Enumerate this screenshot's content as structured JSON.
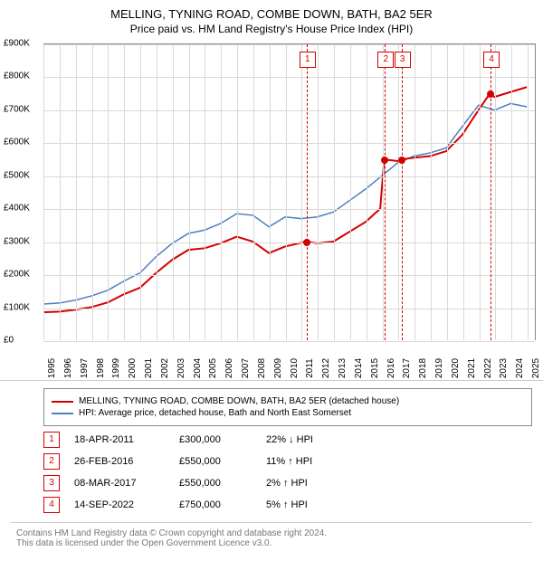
{
  "chart": {
    "title_line1": "MELLING, TYNING ROAD, COMBE DOWN, BATH, BA2 5ER",
    "title_line2": "Price paid vs. HM Land Registry's House Price Index (HPI)",
    "background_color": "#ffffff",
    "grid_color": "#d9d9d9",
    "axis_color": "#888888",
    "font_size_title": 13,
    "font_size_axis": 10,
    "y": {
      "min": 0,
      "max": 900000,
      "step": 100000,
      "ticks": [
        "£0",
        "£100K",
        "£200K",
        "£300K",
        "£400K",
        "£500K",
        "£600K",
        "£700K",
        "£800K",
        "£900K"
      ]
    },
    "x": {
      "min": 1995,
      "max": 2025.5,
      "ticks": [
        "1995",
        "1996",
        "1997",
        "1998",
        "1999",
        "2000",
        "2001",
        "2002",
        "2003",
        "2004",
        "2005",
        "2006",
        "2007",
        "2008",
        "2009",
        "2010",
        "2011",
        "2012",
        "2013",
        "2014",
        "2015",
        "2016",
        "2017",
        "2018",
        "2019",
        "2020",
        "2021",
        "2022",
        "2023",
        "2024",
        "2025"
      ]
    },
    "series": {
      "red": {
        "color": "#d40000",
        "width": 2,
        "label": "MELLING, TYNING ROAD, COMBE DOWN, BATH, BA2 5ER (detached house)",
        "points": [
          [
            1995,
            85000
          ],
          [
            1996,
            87000
          ],
          [
            1997,
            93000
          ],
          [
            1998,
            101000
          ],
          [
            1999,
            115000
          ],
          [
            2000,
            140000
          ],
          [
            2001,
            160000
          ],
          [
            2002,
            205000
          ],
          [
            2003,
            245000
          ],
          [
            2004,
            275000
          ],
          [
            2005,
            280000
          ],
          [
            2006,
            295000
          ],
          [
            2007,
            315000
          ],
          [
            2008,
            300000
          ],
          [
            2009,
            265000
          ],
          [
            2010,
            285000
          ],
          [
            2011.3,
            300000
          ],
          [
            2012,
            295000
          ],
          [
            2013,
            300000
          ],
          [
            2014,
            330000
          ],
          [
            2015,
            360000
          ],
          [
            2015.9,
            400000
          ],
          [
            2016.15,
            550000
          ],
          [
            2017,
            545000
          ],
          [
            2017.18,
            550000
          ],
          [
            2018,
            555000
          ],
          [
            2019,
            560000
          ],
          [
            2020,
            575000
          ],
          [
            2021,
            625000
          ],
          [
            2022,
            700000
          ],
          [
            2022.7,
            750000
          ],
          [
            2023,
            740000
          ],
          [
            2024,
            755000
          ],
          [
            2025,
            770000
          ]
        ]
      },
      "blue": {
        "color": "#4a7fc1",
        "width": 1.5,
        "label": "HPI: Average price, detached house, Bath and North East Somerset",
        "points": [
          [
            1995,
            110000
          ],
          [
            1996,
            113000
          ],
          [
            1997,
            122000
          ],
          [
            1998,
            135000
          ],
          [
            1999,
            152000
          ],
          [
            2000,
            180000
          ],
          [
            2001,
            205000
          ],
          [
            2002,
            255000
          ],
          [
            2003,
            295000
          ],
          [
            2004,
            325000
          ],
          [
            2005,
            335000
          ],
          [
            2006,
            355000
          ],
          [
            2007,
            385000
          ],
          [
            2008,
            380000
          ],
          [
            2009,
            345000
          ],
          [
            2010,
            375000
          ],
          [
            2011,
            370000
          ],
          [
            2012,
            375000
          ],
          [
            2013,
            390000
          ],
          [
            2014,
            425000
          ],
          [
            2015,
            460000
          ],
          [
            2016,
            500000
          ],
          [
            2017,
            540000
          ],
          [
            2018,
            560000
          ],
          [
            2019,
            570000
          ],
          [
            2020,
            585000
          ],
          [
            2021,
            650000
          ],
          [
            2022,
            715000
          ],
          [
            2023,
            700000
          ],
          [
            2024,
            720000
          ],
          [
            2025,
            710000
          ]
        ]
      }
    },
    "event_markers": [
      {
        "num": "1",
        "year": 2011.3
      },
      {
        "num": "2",
        "year": 2016.15
      },
      {
        "num": "3",
        "year": 2017.18
      },
      {
        "num": "4",
        "year": 2022.7
      }
    ],
    "sale_points": [
      {
        "year": 2011.3,
        "value": 300000
      },
      {
        "year": 2016.15,
        "value": 550000
      },
      {
        "year": 2017.18,
        "value": 550000
      },
      {
        "year": 2022.7,
        "value": 750000
      }
    ]
  },
  "events": {
    "rows": [
      {
        "num": "1",
        "date": "18-APR-2011",
        "price": "£300,000",
        "pct": "22% ↓ HPI"
      },
      {
        "num": "2",
        "date": "26-FEB-2016",
        "price": "£550,000",
        "pct": "11% ↑ HPI"
      },
      {
        "num": "3",
        "date": "08-MAR-2017",
        "price": "£550,000",
        "pct": "2% ↑ HPI"
      },
      {
        "num": "4",
        "date": "14-SEP-2022",
        "price": "£750,000",
        "pct": "5% ↑ HPI"
      }
    ],
    "num_border_color": "#d40000"
  },
  "legend": {
    "red_color": "#d40000",
    "blue_color": "#4a7fc1"
  },
  "attribution": {
    "line1": "Contains HM Land Registry data © Crown copyright and database right 2024.",
    "line2": "This data is licensed under the Open Government Licence v3.0."
  }
}
